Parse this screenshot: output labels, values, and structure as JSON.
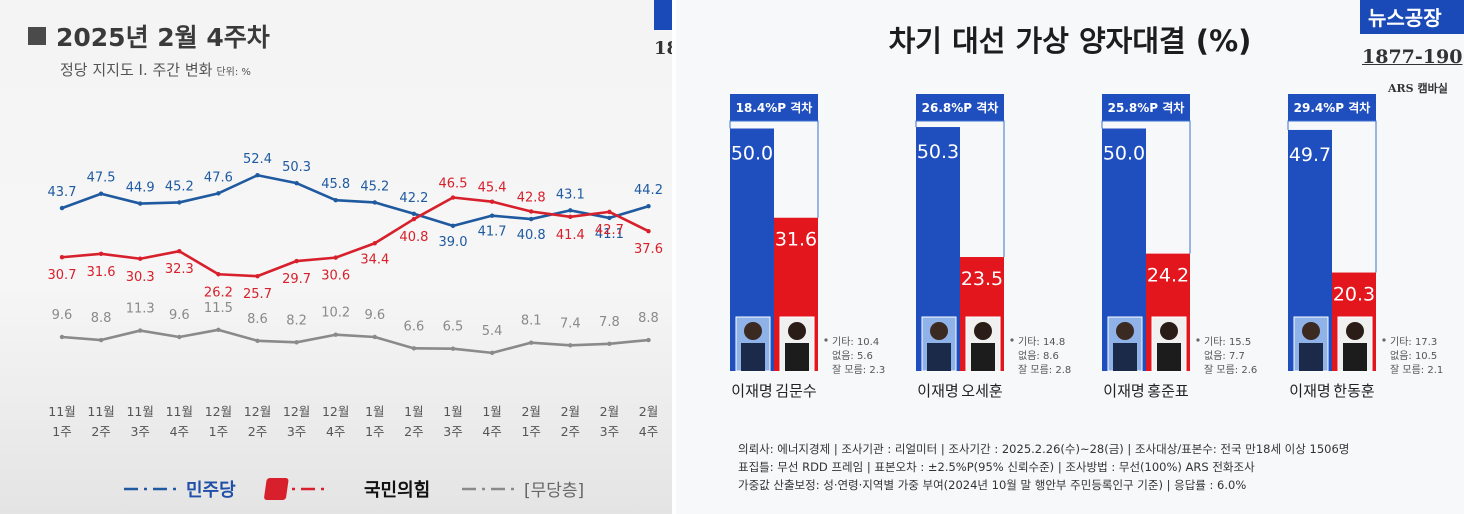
{
  "left_panel": {
    "title": "2025년 2월 4주차",
    "subtitle": "정당 지지도 Ⅰ. 주간 변화",
    "unit_label": "단위: %",
    "legend": [
      {
        "label": "민주당",
        "color": "#1f5aa0"
      },
      {
        "label": "국민의힘",
        "color": "#d7202b"
      },
      {
        "label": "[무당층]",
        "color": "#8a8a8a"
      }
    ],
    "corner_text": "18"
  },
  "right_panel": {
    "title": "차기 대선 가상 양자대결 (%)",
    "corner_logo_text": "뉴스공장",
    "corner_number": "1877-190",
    "corner_sub": "ARS 캠바실",
    "footer_lines": [
      "의뢰사: 에너지경제 | 조사기관 : 리얼미터 | 조사기간 : 2025.2.26(수)~28(금) | 조사대상/표본수: 전국 만18세 이상 1506명",
      "표집틀: 무선 RDD 프레임 | 표본오차 : ±2.5%P(95% 신뢰수준) | 조사방법 : 무선(100%) ARS 전화조사",
      "가중값 산출보정: 성·연령·지역별 가중 부여(2024년 10월 말 행안부 주민등록인구 기준) | 응답률 : 6.0%"
    ]
  },
  "chart_data": [
    {
      "type": "line",
      "title": "정당 지지도 Ⅰ. 주간 변화",
      "ylabel": "단위: %",
      "categories": [
        "11월 1주",
        "11월 2주",
        "11월 3주",
        "11월 4주",
        "12월 1주",
        "12월 2주",
        "12월 3주",
        "12월 4주",
        "1월 1주",
        "1월 2주",
        "1월 3주",
        "1월 4주",
        "2월 1주",
        "2월 2주",
        "2월 3주",
        "2월 4주"
      ],
      "series": [
        {
          "name": "민주당",
          "color": "#1f5aa0",
          "values": [
            43.7,
            47.5,
            44.9,
            45.2,
            47.6,
            52.4,
            50.3,
            45.8,
            45.2,
            42.2,
            39.0,
            41.7,
            40.8,
            43.1,
            41.1,
            44.2
          ]
        },
        {
          "name": "국민의힘",
          "color": "#d7202b",
          "values": [
            30.7,
            31.6,
            30.3,
            32.3,
            26.2,
            25.7,
            29.7,
            30.6,
            34.4,
            40.8,
            46.5,
            45.4,
            42.8,
            41.4,
            42.7,
            37.6
          ]
        },
        {
          "name": "[무당층]",
          "color": "#8a8a8a",
          "values": [
            9.6,
            8.8,
            11.3,
            9.6,
            11.5,
            8.6,
            8.2,
            10.2,
            9.6,
            6.6,
            6.5,
            5.4,
            8.1,
            7.4,
            7.8,
            8.8
          ]
        }
      ],
      "grid": false,
      "legend_placement": "bottom"
    },
    {
      "type": "bar",
      "title": "차기 대선 가상 양자대결 (%)",
      "matchups": [
        {
          "gap": "18.4%P 격차",
          "dem_name": "이재명",
          "dem_value": 50.0,
          "opp_name": "김문수",
          "opp_value": 31.6,
          "other": "기타: 10.4",
          "none": "없음: 5.6",
          "unsure": "잘 모름: 2.3"
        },
        {
          "gap": "26.8%P 격차",
          "dem_name": "이재명",
          "dem_value": 50.3,
          "opp_name": "오세훈",
          "opp_value": 23.5,
          "other": "기타: 14.8",
          "none": "없음: 8.6",
          "unsure": "잘 모름: 2.8"
        },
        {
          "gap": "25.8%P 격차",
          "dem_name": "이재명",
          "dem_value": 50.0,
          "opp_name": "홍준표",
          "opp_value": 24.2,
          "other": "기타: 15.5",
          "none": "없음: 7.7",
          "unsure": "잘 모름: 2.6"
        },
        {
          "gap": "29.4%P 격차",
          "dem_name": "이재명",
          "dem_value": 49.7,
          "opp_name": "한동훈",
          "opp_value": 20.3,
          "other": "기타: 17.3",
          "none": "없음: 10.5",
          "unsure": "잘 모름: 2.1"
        }
      ],
      "colors": {
        "dem": "#1f4fbf",
        "opp": "#e3161e",
        "gap_box": "#1f4fbf"
      }
    }
  ]
}
